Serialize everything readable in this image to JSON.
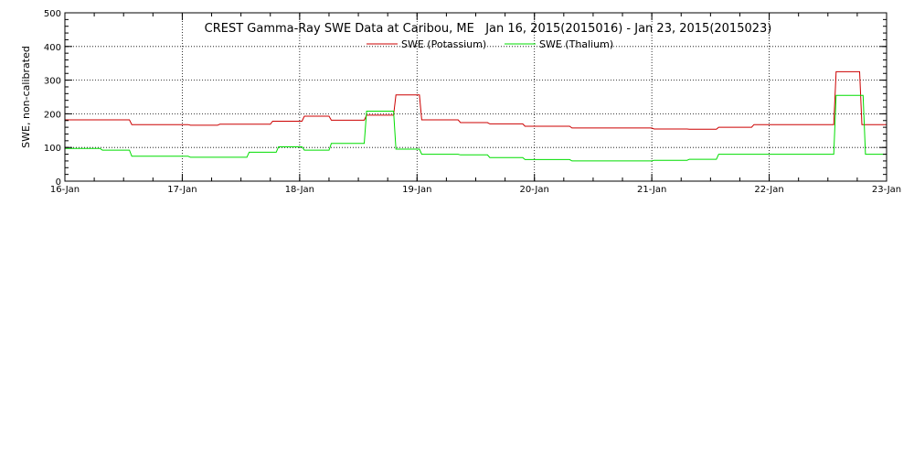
{
  "chart_data": {
    "type": "line",
    "title": "CREST Gamma-Ray SWE Data at Caribou, ME   Jan 16, 2015(2015016) - Jan 23, 2015(2015023)",
    "xlabel": "",
    "ylabel": "SWE, non-calibrated",
    "x_tick_labels": [
      "16-Jan",
      "17-Jan",
      "18-Jan",
      "19-Jan",
      "20-Jan",
      "21-Jan",
      "22-Jan",
      "23-Jan"
    ],
    "y_tick_labels": [
      "0",
      "100",
      "200",
      "300",
      "400",
      "500"
    ],
    "xlim_days": [
      0,
      7
    ],
    "ylim": [
      0,
      500
    ],
    "grid": true,
    "legend_position": "top-center",
    "series": [
      {
        "name": "SWE (Potassium)",
        "color": "#cc0000",
        "x_days": [
          0,
          0.55,
          0.57,
          1.05,
          1.07,
          1.3,
          1.32,
          1.75,
          1.77,
          2.02,
          2.04,
          2.25,
          2.27,
          2.55,
          2.57,
          2.8,
          2.82,
          3.02,
          3.04,
          3.35,
          3.37,
          3.6,
          3.62,
          3.9,
          3.92,
          4.3,
          4.32,
          5.0,
          5.02,
          5.3,
          5.32,
          5.55,
          5.57,
          5.85,
          5.87,
          6.55,
          6.57,
          6.77,
          6.79,
          7.0
        ],
        "y_values": [
          182,
          182,
          168,
          168,
          166,
          166,
          169,
          169,
          178,
          178,
          193,
          193,
          181,
          181,
          196,
          196,
          256,
          256,
          182,
          182,
          174,
          174,
          170,
          170,
          163,
          163,
          158,
          158,
          155,
          155,
          154,
          154,
          160,
          160,
          168,
          168,
          325,
          325,
          168,
          168
        ]
      },
      {
        "name": "SWE (Thalium)",
        "color": "#00dd00",
        "x_days": [
          0,
          0.3,
          0.32,
          0.55,
          0.57,
          1.05,
          1.07,
          1.55,
          1.57,
          1.8,
          1.82,
          2.02,
          2.04,
          2.25,
          2.27,
          2.55,
          2.57,
          2.8,
          2.82,
          3.02,
          3.04,
          3.35,
          3.37,
          3.6,
          3.62,
          3.9,
          3.92,
          4.3,
          4.32,
          5.0,
          5.02,
          5.3,
          5.32,
          5.55,
          5.57,
          6.55,
          6.57,
          6.8,
          6.82,
          7.0
        ],
        "y_values": [
          97,
          97,
          92,
          92,
          74,
          74,
          71,
          71,
          86,
          86,
          102,
          102,
          92,
          92,
          112,
          112,
          208,
          208,
          95,
          95,
          80,
          80,
          78,
          78,
          70,
          70,
          64,
          64,
          60,
          60,
          62,
          62,
          65,
          65,
          80,
          80,
          255,
          255,
          80,
          80
        ]
      }
    ]
  }
}
